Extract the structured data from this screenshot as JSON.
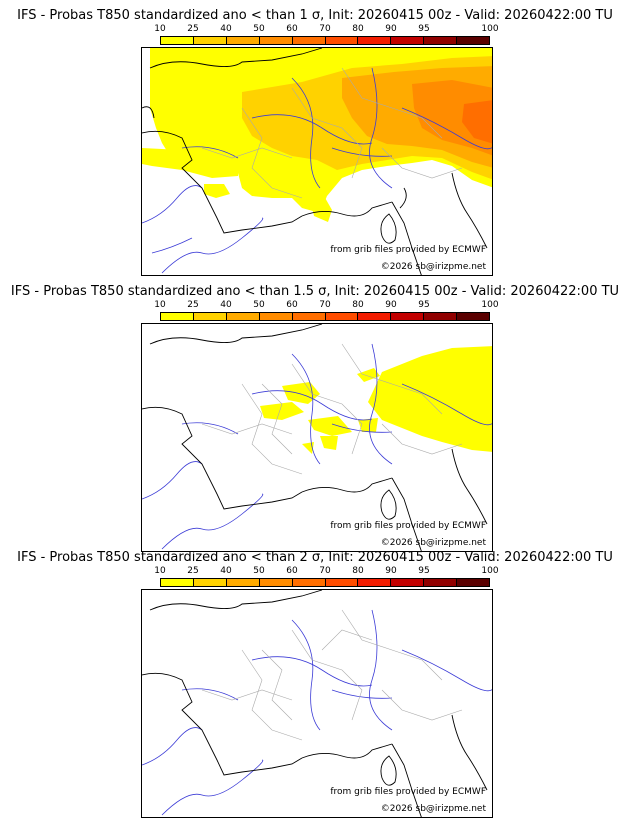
{
  "colors": {
    "land": "#ffffff",
    "coast": "#000000",
    "rivers": "#3b3bd6",
    "borders": "#aaaaaa",
    "shading": [
      "#ffff00",
      "#ffd200",
      "#ffab00",
      "#ff8c00",
      "#ff6e00",
      "#ff4d00",
      "#f21c00",
      "#c20000",
      "#900000",
      "#5a0000"
    ]
  },
  "colorbar": {
    "labels": [
      "10",
      "25",
      "40",
      "50",
      "60",
      "70",
      "80",
      "90",
      "95",
      "100"
    ]
  },
  "credits": {
    "source": "from grib files provided by ECMWF",
    "copyright": "©2026 sb@irizpme.net"
  },
  "panels": [
    {
      "title": "IFS - Probas T850  standardized ano < than 1 σ, Init: 20260415 00z - Valid: 20260422:00 TU",
      "coverage": "high"
    },
    {
      "title": "IFS - Probas T850  standardized ano < than 1.5 σ, Init: 20260415 00z - Valid: 20260422:00 TU",
      "coverage": "medium"
    },
    {
      "title": "IFS - Probas T850  standardized ano < than 2 σ, Init: 20260415 00z - Valid: 20260422:00 TU",
      "coverage": "none"
    }
  ]
}
